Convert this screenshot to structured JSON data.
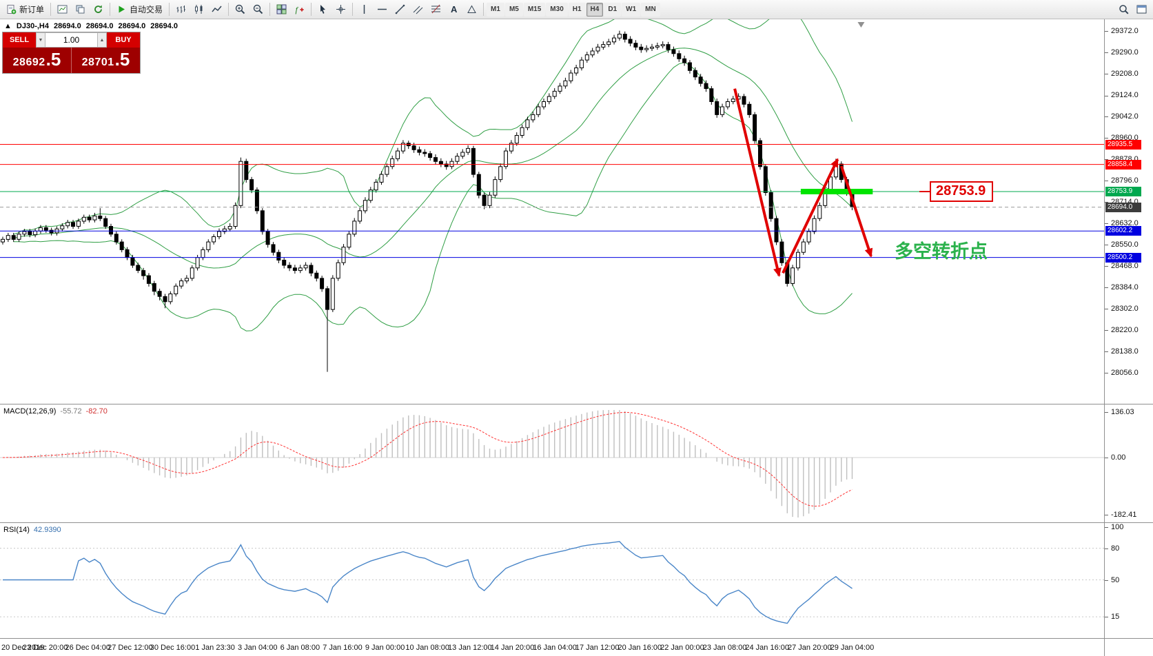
{
  "toolbar": {
    "timeframes": [
      "M1",
      "M5",
      "M15",
      "M30",
      "H1",
      "H4",
      "D1",
      "W1",
      "MN"
    ],
    "active_timeframe": "H4",
    "groups": [
      {
        "items": [
          {
            "icon": "new-order-icon",
            "label": "新订单",
            "name": "new-order-button"
          }
        ]
      },
      {
        "items": [
          {
            "icon": "chart-window-icon",
            "name": "new-chart-button"
          },
          {
            "icon": "profiles-icon",
            "name": "profiles-button"
          },
          {
            "icon": "refresh-icon",
            "name": "refresh-button"
          }
        ]
      },
      {
        "items": [
          {
            "icon": "play-icon",
            "label": "自动交易",
            "name": "auto-trading-button"
          }
        ]
      },
      {
        "items": [
          {
            "icon": "bar-chart-icon",
            "name": "bar-chart-button"
          },
          {
            "icon": "candlestick-icon",
            "name": "candlestick-chart-button"
          },
          {
            "icon": "line-chart-icon",
            "name": "line-chart-button"
          }
        ]
      },
      {
        "items": [
          {
            "icon": "zoom-in-icon",
            "name": "zoom-in-button"
          },
          {
            "icon": "zoom-out-icon",
            "name": "zoom-out-button"
          }
        ]
      },
      {
        "items": [
          {
            "icon": "tile-windows-icon",
            "name": "tile-windows-button"
          },
          {
            "icon": "indicators-icon",
            "name": "indicators-button"
          }
        ]
      },
      {
        "items": [
          {
            "icon": "cursor-icon",
            "name": "cursor-button"
          },
          {
            "icon": "crosshair-icon",
            "name": "crosshair-button"
          }
        ]
      },
      {
        "items": [
          {
            "icon": "vline-icon",
            "name": "vertical-line-button"
          },
          {
            "icon": "hline-icon",
            "name": "horizontal-line-button"
          },
          {
            "icon": "trendline-icon",
            "name": "trendline-button"
          },
          {
            "icon": "channel-icon",
            "name": "channel-button"
          },
          {
            "icon": "fibo-icon",
            "name": "fibonacci-button"
          },
          {
            "icon": "text-icon",
            "name": "text-label-button"
          },
          {
            "icon": "shapes-icon",
            "name": "shapes-button"
          }
        ]
      },
      {
        "timeframes": true
      }
    ],
    "right_items": [
      {
        "icon": "search-icon",
        "name": "search-button"
      },
      {
        "icon": "window-icon",
        "name": "new-window-button"
      }
    ]
  },
  "chart_header": {
    "marker": "▲",
    "symbol": "DJ30-,H4",
    "open": "28694.0",
    "high": "28694.0",
    "low": "28694.0",
    "close": "28694.0"
  },
  "trade_panel": {
    "sell_label": "SELL",
    "buy_label": "BUY",
    "volume": "1.00",
    "spin_down": "▼",
    "spin_up": "▲",
    "sell_price_main": "28692",
    "sell_price_pips": ".5",
    "buy_price_main": "28701",
    "buy_price_pips": ".5"
  },
  "macd_panel": {
    "label": "MACD(12,26,9)",
    "value_main": "-55.72",
    "value_signal": "-82.70",
    "ticks": [
      "136.03",
      "0.00",
      "-182.41"
    ]
  },
  "rsi_panel": {
    "label": "RSI(14)",
    "value": "42.9390",
    "ticks": [
      100,
      80,
      50,
      15
    ],
    "levels": [
      80,
      50,
      15
    ]
  },
  "annotations": {
    "price_callout": "28753.9",
    "turning_point_text": "多空转折点"
  },
  "time_axis": {
    "labels": [
      "20 Dec 2019",
      "23 Dec 20:00",
      "26 Dec 04:00",
      "27 Dec 12:00",
      "30 Dec 16:00",
      "1 Jan 23:30",
      "3 Jan 04:00",
      "6 Jan 08:00",
      "7 Jan 16:00",
      "9 Jan 00:00",
      "10 Jan 08:00",
      "13 Jan 12:00",
      "14 Jan 20:00",
      "16 Jan 04:00",
      "17 Jan 12:00",
      "20 Jan 16:00",
      "22 Jan 00:00",
      "23 Jan 08:00",
      "24 Jan 16:00",
      "27 Jan 20:00",
      "29 Jan 04:00"
    ]
  },
  "chart_data": {
    "type": "candlestick",
    "symbol": "DJ30-",
    "timeframe": "H4",
    "y_ticks": [
      "29372.0",
      "29290.0",
      "29208.0",
      "29124.0",
      "29042.0",
      "28960.0",
      "28878.0",
      "28796.0",
      "28714.0",
      "28632.0",
      "28550.0",
      "28468.0",
      "28384.0",
      "28302.0",
      "28220.0",
      "28138.0",
      "28056.0"
    ],
    "indicators": {
      "bollinger": {
        "period": 20,
        "deviation": 2
      },
      "macd": {
        "fast": 12,
        "slow": 26,
        "signal": 9
      },
      "rsi": {
        "period": 14
      }
    },
    "horizontal_lines": [
      {
        "price": 28935.5,
        "label": "28935.5",
        "color": "#ff0000"
      },
      {
        "price": 28858.4,
        "label": "28858.4",
        "color": "#ff0000"
      },
      {
        "price": 28753.9,
        "label": "28753.9",
        "color": "#00a84f"
      },
      {
        "price": 28602.2,
        "label": "28602.2",
        "color": "#0000e0"
      },
      {
        "price": 28500.2,
        "label": "28500.2",
        "color": "#0000e0"
      }
    ],
    "current_price": {
      "value": 28694.0,
      "label": "28694.0"
    },
    "highlight_bar": {
      "i1": 147.5,
      "i2": 160.8,
      "price": 28753.9,
      "thickness": 8,
      "color": "#00e400"
    },
    "arrows": [
      {
        "i1": 135.3,
        "p1": 29150,
        "i2": 143.5,
        "p2": 28430
      },
      {
        "i1": 144.2,
        "p1": 28440,
        "i2": 154.3,
        "p2": 28878
      },
      {
        "i1": 155.0,
        "p1": 28852,
        "i2": 160.5,
        "p2": 28505
      }
    ],
    "callout": {
      "text": "28753.9",
      "price": 28753.9,
      "x": 1349
    },
    "note": {
      "text": "多空转折点",
      "price": 28545,
      "x": 1298
    },
    "colors": {
      "bull": "#ffffff",
      "bear": "#000000",
      "candle_outline": "#000000",
      "bollinger": "#2f9e44",
      "macd_histogram": "#bfbfbf",
      "macd_signal": "#ff3030",
      "rsi": "#4a86c8",
      "arrow": "#e00000",
      "note_green": "#2bb24c",
      "current_price_tag": "#3c3c3c"
    },
    "candles": [
      [
        28560,
        28580,
        28550,
        28570
      ],
      [
        28570,
        28595,
        28560,
        28585
      ],
      [
        28585,
        28595,
        28560,
        28570
      ],
      [
        28570,
        28600,
        28560,
        28590
      ],
      [
        28590,
        28610,
        28580,
        28600
      ],
      [
        28600,
        28610,
        28578,
        28588
      ],
      [
        28588,
        28612,
        28578,
        28602
      ],
      [
        28602,
        28625,
        28592,
        28615
      ],
      [
        28615,
        28625,
        28595,
        28605
      ],
      [
        28605,
        28615,
        28585,
        28595
      ],
      [
        28595,
        28620,
        28585,
        28610
      ],
      [
        28610,
        28632,
        28600,
        28622
      ],
      [
        28622,
        28645,
        28612,
        28635
      ],
      [
        28635,
        28645,
        28610,
        28620
      ],
      [
        28620,
        28650,
        28610,
        28640
      ],
      [
        28640,
        28665,
        28630,
        28655
      ],
      [
        28655,
        28665,
        28635,
        28645
      ],
      [
        28645,
        28672,
        28635,
        28660
      ],
      [
        28660,
        28690,
        28640,
        28650
      ],
      [
        28650,
        28660,
        28610,
        28620
      ],
      [
        28620,
        28630,
        28580,
        28590
      ],
      [
        28590,
        28600,
        28550,
        28560
      ],
      [
        28560,
        28570,
        28520,
        28530
      ],
      [
        28530,
        28540,
        28490,
        28500
      ],
      [
        28500,
        28510,
        28460,
        28470
      ],
      [
        28470,
        28480,
        28440,
        28450
      ],
      [
        28450,
        28460,
        28415,
        28430
      ],
      [
        28430,
        28440,
        28388,
        28400
      ],
      [
        28400,
        28410,
        28355,
        28370
      ],
      [
        28370,
        28380,
        28335,
        28350
      ],
      [
        28350,
        28360,
        28305,
        28330
      ],
      [
        28330,
        28370,
        28320,
        28360
      ],
      [
        28360,
        28400,
        28350,
        28390
      ],
      [
        28390,
        28420,
        28380,
        28410
      ],
      [
        28410,
        28432,
        28400,
        28420
      ],
      [
        28420,
        28470,
        28410,
        28460
      ],
      [
        28460,
        28510,
        28450,
        28500
      ],
      [
        28500,
        28540,
        28490,
        28530
      ],
      [
        28530,
        28570,
        28520,
        28560
      ],
      [
        28560,
        28590,
        28550,
        28580
      ],
      [
        28580,
        28612,
        28570,
        28600
      ],
      [
        28600,
        28622,
        28590,
        28610
      ],
      [
        28610,
        28632,
        28600,
        28620
      ],
      [
        28620,
        28712,
        28610,
        28700
      ],
      [
        28700,
        28885,
        28690,
        28870
      ],
      [
        28870,
        28880,
        28788,
        28800
      ],
      [
        28800,
        28810,
        28748,
        28760
      ],
      [
        28760,
        28770,
        28668,
        28680
      ],
      [
        28680,
        28690,
        28588,
        28600
      ],
      [
        28600,
        28610,
        28538,
        28550
      ],
      [
        28550,
        28560,
        28508,
        28520
      ],
      [
        28520,
        28530,
        28478,
        28490
      ],
      [
        28490,
        28500,
        28458,
        28470
      ],
      [
        28470,
        28482,
        28448,
        28460
      ],
      [
        28460,
        28472,
        28438,
        28450
      ],
      [
        28450,
        28472,
        28440,
        28460
      ],
      [
        28460,
        28482,
        28450,
        28470
      ],
      [
        28470,
        28480,
        28428,
        28440
      ],
      [
        28440,
        28450,
        28408,
        28420
      ],
      [
        28420,
        28430,
        28368,
        28380
      ],
      [
        28380,
        28390,
        28060,
        28300
      ],
      [
        28300,
        28432,
        28290,
        28420
      ],
      [
        28420,
        28492,
        28410,
        28480
      ],
      [
        28480,
        28552,
        28470,
        28540
      ],
      [
        28540,
        28602,
        28530,
        28590
      ],
      [
        28590,
        28652,
        28580,
        28640
      ],
      [
        28640,
        28692,
        28630,
        28680
      ],
      [
        28680,
        28732,
        28670,
        28720
      ],
      [
        28720,
        28772,
        28710,
        28760
      ],
      [
        28760,
        28802,
        28750,
        28790
      ],
      [
        28790,
        28832,
        28780,
        28820
      ],
      [
        28820,
        28862,
        28810,
        28850
      ],
      [
        28850,
        28892,
        28840,
        28880
      ],
      [
        28880,
        28922,
        28870,
        28910
      ],
      [
        28910,
        28952,
        28900,
        28940
      ],
      [
        28940,
        28950,
        28918,
        28930
      ],
      [
        28930,
        28942,
        28903,
        28915
      ],
      [
        28915,
        28927,
        28893,
        28905
      ],
      [
        28905,
        28917,
        28888,
        28900
      ],
      [
        28900,
        28910,
        28873,
        28885
      ],
      [
        28885,
        28897,
        28858,
        28870
      ],
      [
        28870,
        28882,
        28848,
        28860
      ],
      [
        28860,
        28872,
        28838,
        28850
      ],
      [
        28850,
        28882,
        28840,
        28870
      ],
      [
        28870,
        28902,
        28860,
        28890
      ],
      [
        28890,
        28917,
        28880,
        28905
      ],
      [
        28905,
        28932,
        28895,
        28920
      ],
      [
        28920,
        28930,
        28808,
        28820
      ],
      [
        28820,
        28830,
        28728,
        28740
      ],
      [
        28740,
        28750,
        28686,
        28700
      ],
      [
        28700,
        28752,
        28690,
        28740
      ],
      [
        28740,
        28812,
        28730,
        28800
      ],
      [
        28800,
        28862,
        28790,
        28850
      ],
      [
        28850,
        28922,
        28840,
        28910
      ],
      [
        28910,
        28952,
        28900,
        28940
      ],
      [
        28940,
        28982,
        28930,
        28970
      ],
      [
        28970,
        29012,
        28960,
        29000
      ],
      [
        29000,
        29042,
        28990,
        29030
      ],
      [
        29030,
        29062,
        29020,
        29050
      ],
      [
        29050,
        29092,
        29040,
        29080
      ],
      [
        29080,
        29112,
        29070,
        29100
      ],
      [
        29100,
        29132,
        29090,
        29120
      ],
      [
        29120,
        29152,
        29110,
        29140
      ],
      [
        29140,
        29172,
        29130,
        29160
      ],
      [
        29160,
        29192,
        29150,
        29180
      ],
      [
        29180,
        29222,
        29170,
        29210
      ],
      [
        29210,
        29242,
        29200,
        29230
      ],
      [
        29230,
        29272,
        29220,
        29260
      ],
      [
        29260,
        29292,
        29250,
        29280
      ],
      [
        29280,
        29307,
        29270,
        29295
      ],
      [
        29295,
        29322,
        29285,
        29310
      ],
      [
        29310,
        29332,
        29300,
        29320
      ],
      [
        29320,
        29342,
        29310,
        29330
      ],
      [
        29330,
        29357,
        29320,
        29345
      ],
      [
        29345,
        29373,
        29335,
        29360
      ],
      [
        29360,
        29370,
        29328,
        29340
      ],
      [
        29340,
        29352,
        29313,
        29325
      ],
      [
        29325,
        29337,
        29298,
        29310
      ],
      [
        29310,
        29322,
        29288,
        29300
      ],
      [
        29300,
        29317,
        29290,
        29305
      ],
      [
        29305,
        29322,
        29295,
        29310
      ],
      [
        29310,
        29327,
        29300,
        29315
      ],
      [
        29315,
        29332,
        29305,
        29320
      ],
      [
        29320,
        29330,
        29288,
        29300
      ],
      [
        29300,
        29312,
        29273,
        29285
      ],
      [
        29285,
        29297,
        29253,
        29265
      ],
      [
        29265,
        29277,
        29238,
        29250
      ],
      [
        29250,
        29260,
        29208,
        29220
      ],
      [
        29220,
        29232,
        29183,
        29195
      ],
      [
        29195,
        29207,
        29158,
        29170
      ],
      [
        29170,
        29182,
        29138,
        29150
      ],
      [
        29150,
        29160,
        29088,
        29100
      ],
      [
        29100,
        29112,
        29038,
        29050
      ],
      [
        29050,
        29092,
        29040,
        29080
      ],
      [
        29080,
        29112,
        29070,
        29100
      ],
      [
        29100,
        29122,
        29090,
        29110
      ],
      [
        29110,
        29132,
        29100,
        29120
      ],
      [
        29120,
        29130,
        29078,
        29090
      ],
      [
        29090,
        29100,
        29038,
        29050
      ],
      [
        29050,
        29060,
        28938,
        28950
      ],
      [
        28950,
        28960,
        28838,
        28850
      ],
      [
        28850,
        28860,
        28738,
        28750
      ],
      [
        28750,
        28760,
        28638,
        28650
      ],
      [
        28650,
        28660,
        28548,
        28560
      ],
      [
        28560,
        28570,
        28468,
        28480
      ],
      [
        28480,
        28490,
        28388,
        28400
      ],
      [
        28400,
        28472,
        28390,
        28460
      ],
      [
        28460,
        28532,
        28450,
        28520
      ],
      [
        28520,
        28572,
        28510,
        28560
      ],
      [
        28560,
        28612,
        28550,
        28600
      ],
      [
        28600,
        28662,
        28590,
        28650
      ],
      [
        28650,
        28712,
        28640,
        28700
      ],
      [
        28700,
        28772,
        28690,
        28760
      ],
      [
        28760,
        28822,
        28750,
        28810
      ],
      [
        28810,
        28880,
        28800,
        28860
      ],
      [
        28860,
        28870,
        28788,
        28800
      ],
      [
        28800,
        28810,
        28738,
        28750
      ],
      [
        28750,
        28760,
        28682,
        28694
      ]
    ]
  }
}
